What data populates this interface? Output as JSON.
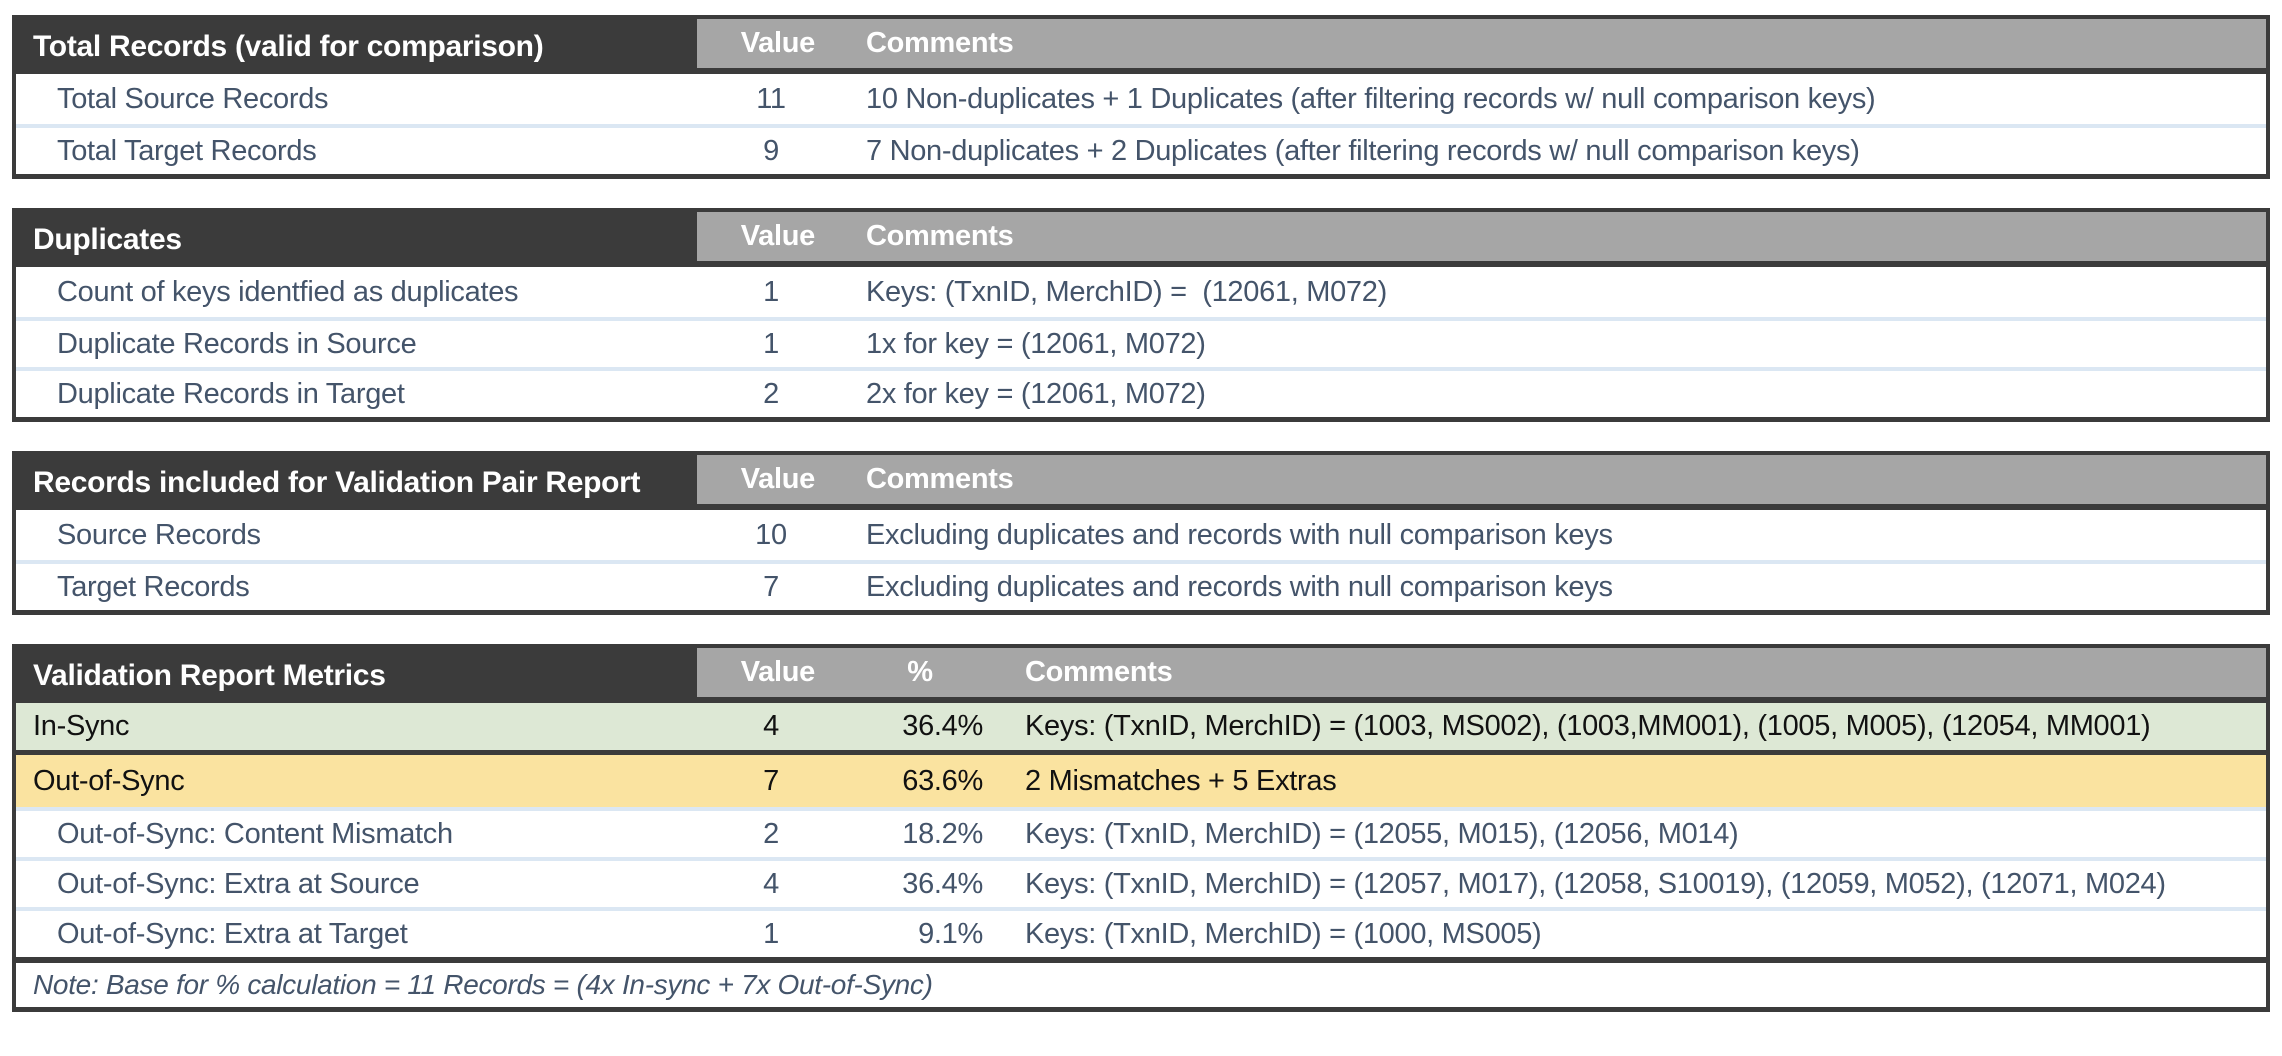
{
  "colors": {
    "header_dark": "#3B3B3B",
    "header_gray": "#A6A6A6",
    "row_separator_blue": "#DBE7F3",
    "insync_green": "#DDE8D5",
    "outofsync_yellow": "#FAE3A0",
    "text_slate": "#44546A"
  },
  "tables": [
    {
      "title": "Total Records (valid for comparison)",
      "header": {
        "value": "Value",
        "comments": "Comments"
      },
      "rows": [
        {
          "label": "Total Source Records",
          "value": "11",
          "comment": "10 Non-duplicates + 1 Duplicates (after filtering records w/ null comparison keys)"
        },
        {
          "label": "Total Target Records",
          "value": "9",
          "comment": "7 Non-duplicates + 2 Duplicates (after filtering records w/ null comparison keys)"
        }
      ]
    },
    {
      "title": "Duplicates",
      "header": {
        "value": "Value",
        "comments": "Comments"
      },
      "rows": [
        {
          "label": "Count of keys identfied as duplicates",
          "value": "1",
          "comment": "Keys: (TxnID, MerchID) =  (12061, M072)"
        },
        {
          "label": "Duplicate Records in Source",
          "value": "1",
          "comment": "1x for key = (12061, M072)"
        },
        {
          "label": "Duplicate Records in Target",
          "value": "2",
          "comment": "2x for key = (12061, M072)"
        }
      ]
    },
    {
      "title": "Records included for Validation Pair Report",
      "header": {
        "value": "Value",
        "comments": "Comments"
      },
      "rows": [
        {
          "label": "Source Records",
          "value": "10",
          "comment": "Excluding duplicates and records with null comparison keys"
        },
        {
          "label": "Target Records",
          "value": "7",
          "comment": "Excluding duplicates and records with null comparison keys"
        }
      ]
    },
    {
      "title": "Validation Report Metrics",
      "header": {
        "value": "Value",
        "percent": "%",
        "comments": "Comments"
      },
      "rows": [
        {
          "label": "In-Sync",
          "value": "4",
          "percent": "36.4%",
          "comment": "Keys: (TxnID, MerchID) = (1003, MS002), (1003,MM001), (1005, M005), (12054, MM001)"
        },
        {
          "label": "Out-of-Sync",
          "value": "7",
          "percent": "63.6%",
          "comment": "2 Mismatches + 5 Extras"
        },
        {
          "label": "Out-of-Sync: Content Mismatch",
          "value": "2",
          "percent": "18.2%",
          "comment": "Keys: (TxnID, MerchID) = (12055, M015), (12056, M014)"
        },
        {
          "label": "Out-of-Sync: Extra at Source",
          "value": "4",
          "percent": "36.4%",
          "comment": "Keys: (TxnID, MerchID) = (12057, M017), (12058, S10019), (12059, M052), (12071, M024)"
        },
        {
          "label": "Out-of-Sync: Extra at Target",
          "value": "1",
          "percent": "9.1%",
          "comment": "Keys: (TxnID, MerchID) = (1000, MS005)"
        }
      ],
      "note": "Note: Base for % calculation = 11 Records = (4x In-sync + 7x Out-of-Sync)"
    }
  ]
}
